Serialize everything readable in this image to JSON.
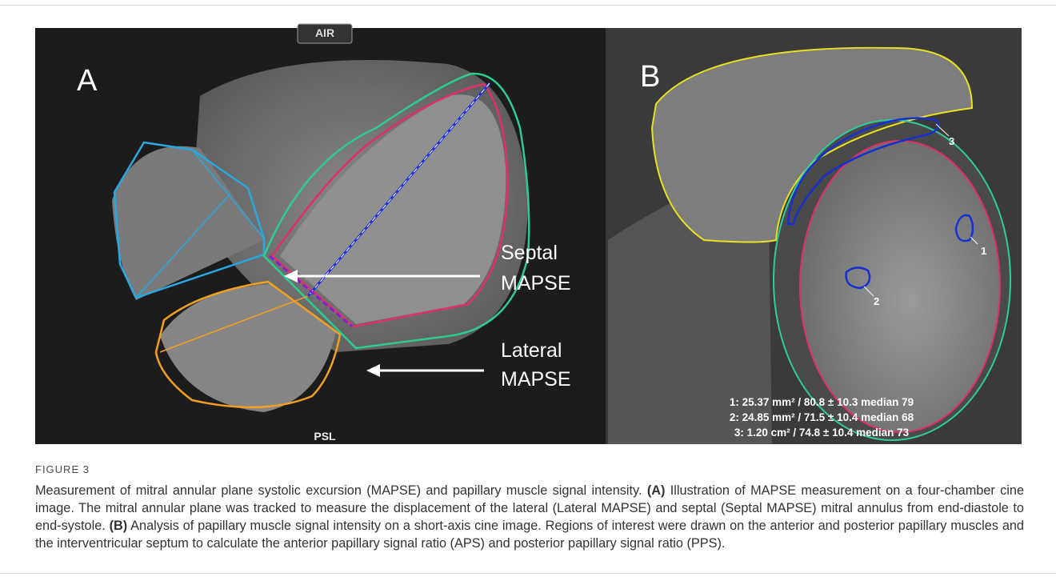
{
  "panel_a": {
    "label": "A",
    "top_label": "AIR",
    "bottom_label": "PSL",
    "annotations": [
      {
        "lines": [
          "Septal",
          "MAPSE"
        ]
      },
      {
        "lines": [
          "Lateral",
          "MAPSE"
        ]
      }
    ]
  },
  "panel_b": {
    "label": "B",
    "roi_labels": [
      "1",
      "2",
      "3"
    ],
    "measurements": [
      "1: 25.37 mm² / 80.8 ± 10.3 median 79",
      "2: 24.85 mm² / 71.5 ± 10.4 median 68",
      "3: 1.20 cm² / 74.8 ± 10.4 median 73"
    ]
  },
  "figure": {
    "label": "FIGURE 3",
    "caption": [
      {
        "text": "Measurement of mitral annular plane systolic excursion (MAPSE) and papillary muscle signal intensity. ",
        "bold": false
      },
      {
        "text": "(A)",
        "bold": true
      },
      {
        "text": " Illustration of MAPSE measurement on a four-chamber cine image. The mitral annular plane was tracked to measure the displacement of the lateral (Lateral MAPSE) and septal (Septal MAPSE) mitral annulus from end-diastole to end-systole. ",
        "bold": false
      },
      {
        "text": "(B)",
        "bold": true
      },
      {
        "text": " Analysis of papillary muscle signal intensity on a short-axis cine image. Regions of interest were drawn on the anterior and posterior papillary muscles and the interventricular septum to calculate the anterior papillary signal ratio (APS) and posterior papillary signal ratio (PPS).",
        "bold": false
      }
    ]
  }
}
